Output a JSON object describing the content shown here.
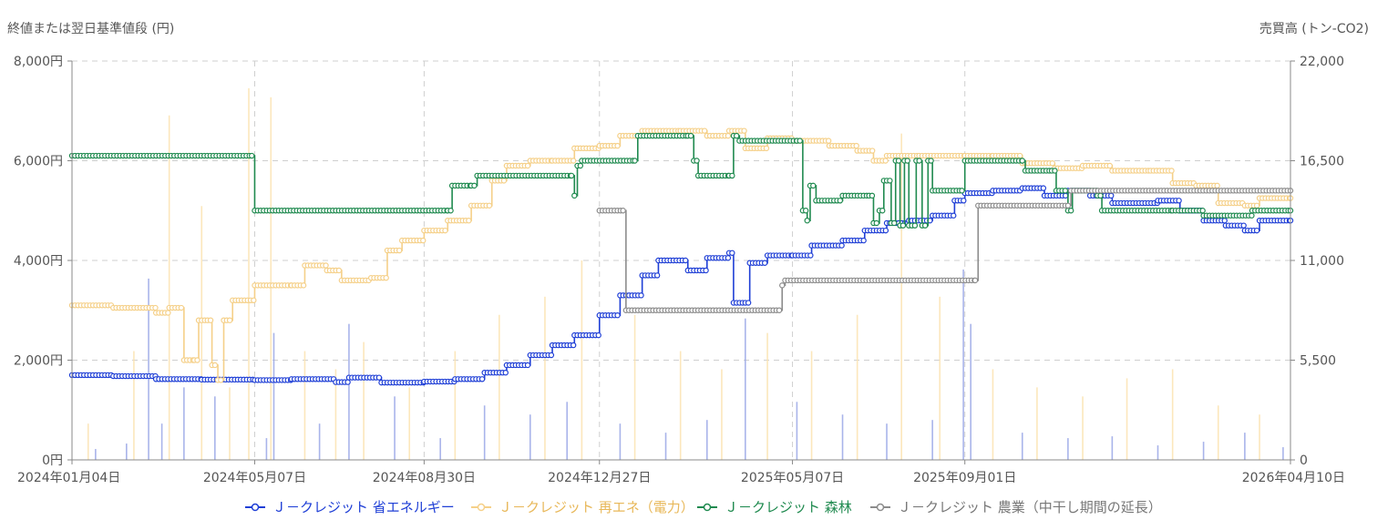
{
  "chart_data": {
    "type": "line",
    "left_axis_title": "終値または翌日基準値段 (円)",
    "right_axis_title": "売買高 (トン-CO2)",
    "y_left": {
      "min": 0,
      "max": 8000,
      "ticks": [
        0,
        2000,
        4000,
        6000,
        8000
      ],
      "tick_labels": [
        "0円",
        "2,000円",
        "4,000円",
        "6,000円",
        "8,000円"
      ]
    },
    "y_right": {
      "min": 0,
      "max": 22000,
      "ticks": [
        0,
        5500,
        11000,
        16500,
        22000
      ],
      "tick_labels": [
        "0",
        "5,500",
        "11,000",
        "16,500",
        "22,000"
      ]
    },
    "x_range": [
      "2024-01-04",
      "2026-04-10"
    ],
    "x_ticks": [
      {
        "date": "2024-01-04",
        "label": "2024年01月04日"
      },
      {
        "date": "2024-05-07",
        "label": "2024年05月07日"
      },
      {
        "date": "2024-08-30",
        "label": "2024年08月30日"
      },
      {
        "date": "2024-12-27",
        "label": "2024年12月27日"
      },
      {
        "date": "2025-05-07",
        "label": "2025年05月07日"
      },
      {
        "date": "2025-09-01",
        "label": "2025年09月01日"
      },
      {
        "date": "2026-04-10",
        "label": "2026年04月10日"
      }
    ],
    "grid": true,
    "legend_position": "bottom",
    "series": [
      {
        "name": "Ｊ－クレジット 省エネルギー",
        "color": "#1f3fd6",
        "points": [
          [
            "2024-01-04",
            1700
          ],
          [
            "2024-02-01",
            1680
          ],
          [
            "2024-03-01",
            1620
          ],
          [
            "2024-04-01",
            1610
          ],
          [
            "2024-05-07",
            1600
          ],
          [
            "2024-06-01",
            1620
          ],
          [
            "2024-07-01",
            1560
          ],
          [
            "2024-07-10",
            1650
          ],
          [
            "2024-08-01",
            1550
          ],
          [
            "2024-08-30",
            1570
          ],
          [
            "2024-09-20",
            1620
          ],
          [
            "2024-10-10",
            1750
          ],
          [
            "2024-10-25",
            1900
          ],
          [
            "2024-11-10",
            2100
          ],
          [
            "2024-11-25",
            2300
          ],
          [
            "2024-12-10",
            2500
          ],
          [
            "2024-12-27",
            2900
          ],
          [
            "2025-01-10",
            3300
          ],
          [
            "2025-01-25",
            3700
          ],
          [
            "2025-02-05",
            4000
          ],
          [
            "2025-02-25",
            3800
          ],
          [
            "2025-03-10",
            4050
          ],
          [
            "2025-03-25",
            4150
          ],
          [
            "2025-03-28",
            3150
          ],
          [
            "2025-04-05",
            3150
          ],
          [
            "2025-04-08",
            3950
          ],
          [
            "2025-04-20",
            4100
          ],
          [
            "2025-05-07",
            4100
          ],
          [
            "2025-05-20",
            4300
          ],
          [
            "2025-06-10",
            4400
          ],
          [
            "2025-06-25",
            4600
          ],
          [
            "2025-07-10",
            4750
          ],
          [
            "2025-07-25",
            4800
          ],
          [
            "2025-08-10",
            4900
          ],
          [
            "2025-08-25",
            5200
          ],
          [
            "2025-09-01",
            5350
          ],
          [
            "2025-09-20",
            5400
          ],
          [
            "2025-10-10",
            5450
          ],
          [
            "2025-10-25",
            5300
          ],
          [
            "2025-11-10",
            5400
          ],
          [
            "2025-11-25",
            5300
          ],
          [
            "2025-12-10",
            5150
          ],
          [
            "2026-01-10",
            5200
          ],
          [
            "2026-01-25",
            5000
          ],
          [
            "2026-02-10",
            4800
          ],
          [
            "2026-02-25",
            4700
          ],
          [
            "2026-03-10",
            4600
          ],
          [
            "2026-03-20",
            4800
          ],
          [
            "2026-04-10",
            4800
          ]
        ]
      },
      {
        "name": "Ｊ－クレジット 再エネ（電力）",
        "color": "#f5d089",
        "points": [
          [
            "2024-01-04",
            3100
          ],
          [
            "2024-02-01",
            3050
          ],
          [
            "2024-03-01",
            2950
          ],
          [
            "2024-03-10",
            3050
          ],
          [
            "2024-03-20",
            2000
          ],
          [
            "2024-03-27",
            2000
          ],
          [
            "2024-03-30",
            2800
          ],
          [
            "2024-04-05",
            2800
          ],
          [
            "2024-04-08",
            1900
          ],
          [
            "2024-04-12",
            1600
          ],
          [
            "2024-04-16",
            2800
          ],
          [
            "2024-04-22",
            3200
          ],
          [
            "2024-05-07",
            3500
          ],
          [
            "2024-06-01",
            3500
          ],
          [
            "2024-06-10",
            3900
          ],
          [
            "2024-06-25",
            3800
          ],
          [
            "2024-07-05",
            3600
          ],
          [
            "2024-07-25",
            3650
          ],
          [
            "2024-08-05",
            4200
          ],
          [
            "2024-08-15",
            4400
          ],
          [
            "2024-08-30",
            4600
          ],
          [
            "2024-09-15",
            4800
          ],
          [
            "2024-10-01",
            5100
          ],
          [
            "2024-10-15",
            5600
          ],
          [
            "2024-10-25",
            5900
          ],
          [
            "2024-11-10",
            6000
          ],
          [
            "2024-11-25",
            6000
          ],
          [
            "2024-12-10",
            6250
          ],
          [
            "2024-12-27",
            6300
          ],
          [
            "2025-01-10",
            6500
          ],
          [
            "2025-01-25",
            6600
          ],
          [
            "2025-02-20",
            6600
          ],
          [
            "2025-03-10",
            6500
          ],
          [
            "2025-03-25",
            6600
          ],
          [
            "2025-04-05",
            6250
          ],
          [
            "2025-04-20",
            6450
          ],
          [
            "2025-05-07",
            6400
          ],
          [
            "2025-06-01",
            6300
          ],
          [
            "2025-06-20",
            6200
          ],
          [
            "2025-07-01",
            6000
          ],
          [
            "2025-07-10",
            6100
          ],
          [
            "2025-08-01",
            6100
          ],
          [
            "2025-09-01",
            6100
          ],
          [
            "2025-09-20",
            6100
          ],
          [
            "2025-10-10",
            5950
          ],
          [
            "2025-11-01",
            5850
          ],
          [
            "2025-11-20",
            5900
          ],
          [
            "2025-12-10",
            5800
          ],
          [
            "2026-01-05",
            5800
          ],
          [
            "2026-01-20",
            5550
          ],
          [
            "2026-02-05",
            5500
          ],
          [
            "2026-02-20",
            5150
          ],
          [
            "2026-03-10",
            5100
          ],
          [
            "2026-03-20",
            5250
          ],
          [
            "2026-04-10",
            5250
          ]
        ]
      },
      {
        "name": "Ｊ－クレジット 森林",
        "color": "#1f8a4f",
        "points": [
          [
            "2024-01-04",
            6100
          ],
          [
            "2024-05-05",
            6100
          ],
          [
            "2024-05-07",
            5000
          ],
          [
            "2024-09-15",
            5000
          ],
          [
            "2024-09-18",
            5500
          ],
          [
            "2024-10-01",
            5500
          ],
          [
            "2024-10-05",
            5700
          ],
          [
            "2024-12-08",
            5700
          ],
          [
            "2024-12-10",
            5300
          ],
          [
            "2024-12-12",
            5900
          ],
          [
            "2024-12-15",
            6000
          ],
          [
            "2025-01-20",
            6000
          ],
          [
            "2025-01-22",
            6500
          ],
          [
            "2025-02-25",
            6500
          ],
          [
            "2025-03-01",
            6000
          ],
          [
            "2025-03-04",
            5700
          ],
          [
            "2025-03-25",
            5700
          ],
          [
            "2025-03-28",
            6500
          ],
          [
            "2025-04-01",
            6400
          ],
          [
            "2025-05-10",
            6400
          ],
          [
            "2025-05-14",
            5000
          ],
          [
            "2025-05-17",
            4800
          ],
          [
            "2025-05-19",
            5500
          ],
          [
            "2025-05-23",
            5200
          ],
          [
            "2025-06-10",
            5300
          ],
          [
            "2025-06-28",
            5300
          ],
          [
            "2025-07-01",
            4750
          ],
          [
            "2025-07-05",
            5000
          ],
          [
            "2025-07-08",
            5600
          ],
          [
            "2025-07-13",
            4750
          ],
          [
            "2025-07-16",
            6000
          ],
          [
            "2025-07-19",
            4700
          ],
          [
            "2025-07-22",
            6000
          ],
          [
            "2025-07-25",
            4700
          ],
          [
            "2025-07-30",
            6000
          ],
          [
            "2025-08-03",
            4700
          ],
          [
            "2025-08-07",
            6000
          ],
          [
            "2025-08-10",
            5400
          ],
          [
            "2025-08-30",
            5400
          ],
          [
            "2025-09-01",
            6000
          ],
          [
            "2025-10-10",
            6000
          ],
          [
            "2025-10-12",
            5800
          ],
          [
            "2025-10-30",
            5800
          ],
          [
            "2025-11-02",
            5400
          ],
          [
            "2025-11-10",
            5000
          ],
          [
            "2025-11-13",
            5400
          ],
          [
            "2025-11-30",
            5300
          ],
          [
            "2025-12-03",
            5000
          ],
          [
            "2026-01-20",
            5000
          ],
          [
            "2026-02-10",
            4900
          ],
          [
            "2026-03-15",
            5000
          ],
          [
            "2026-04-10",
            5000
          ]
        ]
      },
      {
        "name": "Ｊ－クレジット 農業（中干し期間の延長）",
        "color": "#8c8c8c",
        "points": [
          [
            "2024-12-27",
            5000
          ],
          [
            "2025-01-12",
            5000
          ],
          [
            "2025-01-14",
            3000
          ],
          [
            "2025-04-28",
            3000
          ],
          [
            "2025-04-30",
            3500
          ],
          [
            "2025-05-02",
            3600
          ],
          [
            "2025-09-08",
            3600
          ],
          [
            "2025-09-10",
            5100
          ],
          [
            "2025-11-10",
            5100
          ],
          [
            "2025-11-12",
            5400
          ],
          [
            "2026-04-10",
            5400
          ]
        ]
      }
    ],
    "volume_series": [
      {
        "series": "Ｊ－クレジット 省エネルギー",
        "color": "#9aa7e6",
        "bars": [
          [
            "2024-01-20",
            600
          ],
          [
            "2024-02-10",
            900
          ],
          [
            "2024-02-25",
            10000
          ],
          [
            "2024-03-05",
            2000
          ],
          [
            "2024-03-20",
            4000
          ],
          [
            "2024-04-10",
            3500
          ],
          [
            "2024-05-15",
            1200
          ],
          [
            "2024-05-20",
            7000
          ],
          [
            "2024-06-20",
            2000
          ],
          [
            "2024-07-10",
            7500
          ],
          [
            "2024-08-10",
            3500
          ],
          [
            "2024-09-10",
            1200
          ],
          [
            "2024-10-10",
            3000
          ],
          [
            "2024-11-10",
            2500
          ],
          [
            "2024-12-05",
            3200
          ],
          [
            "2025-01-10",
            2000
          ],
          [
            "2025-02-10",
            1500
          ],
          [
            "2025-03-10",
            2200
          ],
          [
            "2025-04-05",
            7800
          ],
          [
            "2025-05-10",
            3200
          ],
          [
            "2025-06-10",
            2500
          ],
          [
            "2025-07-10",
            2000
          ],
          [
            "2025-08-10",
            2200
          ],
          [
            "2025-08-31",
            10500
          ],
          [
            "2025-09-05",
            7500
          ],
          [
            "2025-10-10",
            1500
          ],
          [
            "2025-11-10",
            1200
          ],
          [
            "2025-12-10",
            1300
          ],
          [
            "2026-01-10",
            800
          ],
          [
            "2026-02-10",
            1000
          ],
          [
            "2026-03-10",
            1500
          ],
          [
            "2026-04-05",
            700
          ]
        ]
      },
      {
        "series": "Ｊ－クレジット 再エネ（電力）",
        "color": "#fbe3b0",
        "bars": [
          [
            "2024-01-15",
            2000
          ],
          [
            "2024-02-15",
            6000
          ],
          [
            "2024-03-10",
            19000
          ],
          [
            "2024-04-01",
            14000
          ],
          [
            "2024-04-20",
            4000
          ],
          [
            "2024-05-03",
            20500
          ],
          [
            "2024-05-18",
            20000
          ],
          [
            "2024-06-10",
            6000
          ],
          [
            "2024-07-01",
            5000
          ],
          [
            "2024-07-20",
            6500
          ],
          [
            "2024-08-20",
            4000
          ],
          [
            "2024-09-20",
            6000
          ],
          [
            "2024-10-20",
            8000
          ],
          [
            "2024-11-20",
            9000
          ],
          [
            "2024-12-15",
            11000
          ],
          [
            "2025-01-20",
            8000
          ],
          [
            "2025-02-20",
            6000
          ],
          [
            "2025-03-20",
            5000
          ],
          [
            "2025-04-20",
            7000
          ],
          [
            "2025-05-20",
            6000
          ],
          [
            "2025-06-20",
            8000
          ],
          [
            "2025-07-20",
            18000
          ],
          [
            "2025-08-15",
            9000
          ],
          [
            "2025-09-20",
            5000
          ],
          [
            "2025-10-20",
            4000
          ],
          [
            "2025-11-20",
            3500
          ],
          [
            "2025-12-20",
            4500
          ],
          [
            "2026-01-20",
            5000
          ],
          [
            "2026-02-20",
            3000
          ],
          [
            "2026-03-20",
            2500
          ]
        ]
      }
    ]
  }
}
